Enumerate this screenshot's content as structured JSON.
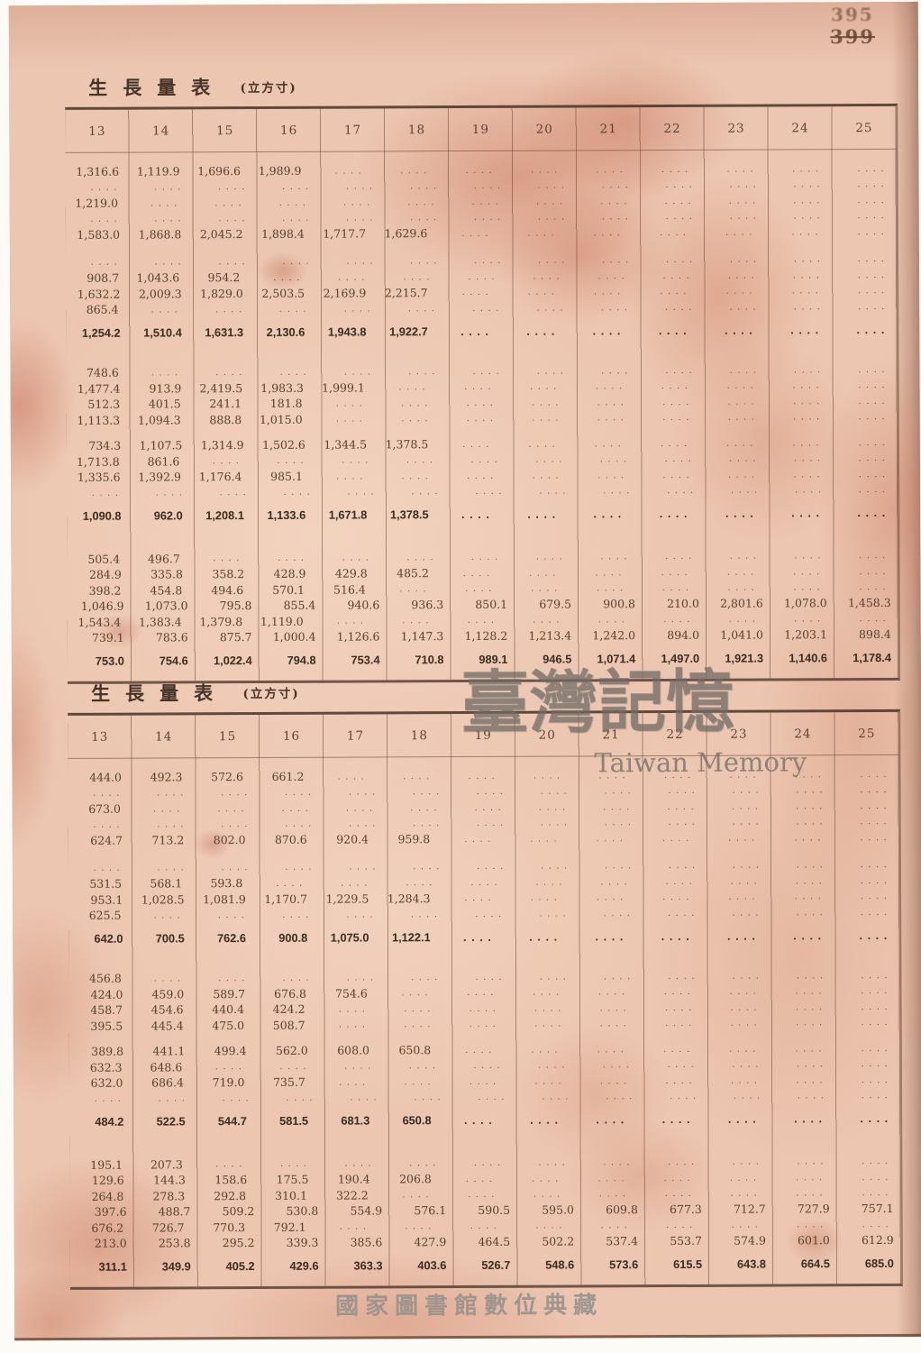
{
  "page": {
    "stamp_top": "395",
    "stamp_bottom_crossed": "399",
    "watermark_cjk": "臺灣記憶",
    "watermark_en": "Taiwan Memory",
    "footer_watermark": "國家圖書館數位典藏"
  },
  "tables": [
    {
      "title": "生長量表",
      "unit": "(立方寸)",
      "columns": [
        "13",
        "14",
        "15",
        "16",
        "17",
        "18",
        "19",
        "20",
        "21",
        "22",
        "23",
        "24",
        "25"
      ],
      "groups": [
        {
          "bold": false,
          "rows": [
            [
              "1,316.6",
              "1,119.9",
              "1,696.6",
              "1,989.9",
              "....",
              "....",
              "....",
              "....",
              "....",
              "....",
              "....",
              "....",
              "...."
            ],
            [
              "....",
              "....",
              "....",
              "....",
              "....",
              "....",
              "....",
              "....",
              "....",
              "....",
              "....",
              "....",
              "...."
            ],
            [
              "1,219.0",
              "....",
              "....",
              "....",
              "....",
              "....",
              "....",
              "....",
              "....",
              "....",
              "....",
              "....",
              "...."
            ],
            [
              "....",
              "....",
              "....",
              "....",
              "....",
              "....",
              "....",
              "....",
              "....",
              "....",
              "....",
              "....",
              "...."
            ],
            [
              "1,583.0",
              "1,868.8",
              "2,045.2",
              "1,898.4",
              "1,717.7",
              "1,629.6",
              "....",
              "....",
              "....",
              "....",
              "....",
              "....",
              "...."
            ]
          ]
        },
        {
          "bold": false,
          "rows": [
            [
              "....",
              "....",
              "....",
              "....",
              "....",
              "....",
              "....",
              "....",
              "....",
              "....",
              "....",
              "....",
              "...."
            ],
            [
              "908.7",
              "1,043.6",
              "954.2",
              "....",
              "....",
              "....",
              "....",
              "....",
              "....",
              "....",
              "....",
              "....",
              "...."
            ],
            [
              "1,632.2",
              "2,009.3",
              "1,829.0",
              "2,503.5",
              "2,169.9",
              "2,215.7",
              "....",
              "....",
              "....",
              "....",
              "....",
              "....",
              "...."
            ],
            [
              "865.4",
              "....",
              "....",
              "....",
              "....",
              "....",
              "....",
              "....",
              "....",
              "....",
              "....",
              "....",
              "...."
            ]
          ]
        },
        {
          "bold": true,
          "rows": [
            [
              "1,254.2",
              "1,510.4",
              "1,631.3",
              "2,130.6",
              "1,943.8",
              "1,922.7",
              "....",
              "....",
              "....",
              "....",
              "....",
              "....",
              "...."
            ]
          ]
        },
        {
          "bold": false,
          "rows": [
            [
              "748.6",
              "....",
              "....",
              "....",
              "....",
              "....",
              "....",
              "....",
              "....",
              "....",
              "....",
              "....",
              "...."
            ],
            [
              "1,477.4",
              "913.9",
              "2,419.5",
              "1,983.3",
              "1,999.1",
              "....",
              "....",
              "....",
              "....",
              "....",
              "....",
              "....",
              "...."
            ],
            [
              "512.3",
              "401.5",
              "241.1",
              "181.8",
              "....",
              "....",
              "....",
              "....",
              "....",
              "....",
              "....",
              "....",
              "...."
            ],
            [
              "1,113.3",
              "1,094.3",
              "888.8",
              "1,015.0",
              "....",
              "....",
              "....",
              "....",
              "....",
              "....",
              "....",
              "....",
              "...."
            ]
          ]
        },
        {
          "bold": false,
          "rows": [
            [
              "734.3",
              "1,107.5",
              "1,314.9",
              "1,502.6",
              "1,344.5",
              "1,378.5",
              "....",
              "....",
              "....",
              "....",
              "....",
              "....",
              "...."
            ],
            [
              "1,713.8",
              "861.6",
              "....",
              "....",
              "....",
              "....",
              "....",
              "....",
              "....",
              "....",
              "....",
              "....",
              "...."
            ],
            [
              "1,335.6",
              "1,392.9",
              "1,176.4",
              "985.1",
              "....",
              "....",
              "....",
              "....",
              "....",
              "....",
              "....",
              "....",
              "...."
            ],
            [
              "....",
              "....",
              "....",
              "....",
              "....",
              "....",
              "....",
              "....",
              "....",
              "....",
              "....",
              "....",
              "...."
            ]
          ]
        },
        {
          "bold": true,
          "rows": [
            [
              "1,090.8",
              "962.0",
              "1,208.1",
              "1,133.6",
              "1,671.8",
              "1,378.5",
              "....",
              "....",
              "....",
              "....",
              "....",
              "....",
              "...."
            ]
          ]
        },
        {
          "bold": false,
          "rows": [
            [
              "505.4",
              "496.7",
              "....",
              "....",
              "....",
              "....",
              "....",
              "....",
              "....",
              "....",
              "....",
              "....",
              "...."
            ],
            [
              "284.9",
              "335.8",
              "358.2",
              "428.9",
              "429.8",
              "485.2",
              "....",
              "....",
              "....",
              "....",
              "....",
              "....",
              "...."
            ],
            [
              "398.2",
              "454.8",
              "494.6",
              "570.1",
              "516.4",
              "....",
              "....",
              "....",
              "....",
              "....",
              "....",
              "....",
              "...."
            ],
            [
              "1,046.9",
              "1,073.0",
              "795.8",
              "855.4",
              "940.6",
              "936.3",
              "850.1",
              "679.5",
              "900.8",
              "210.0",
              "2,801.6",
              "1,078.0",
              "1,458.3"
            ],
            [
              "1,543.4",
              "1,383.4",
              "1,379.8",
              "1,119.0",
              "....",
              "....",
              "....",
              "....",
              "....",
              "....",
              "....",
              "....",
              "...."
            ],
            [
              "739.1",
              "783.6",
              "875.7",
              "1,000.4",
              "1,126.6",
              "1,147.3",
              "1,128.2",
              "1,213.4",
              "1,242.0",
              "894.0",
              "1,041.0",
              "1,203.1",
              "898.4"
            ]
          ]
        },
        {
          "bold": true,
          "rows": [
            [
              "753.0",
              "754.6",
              "1,022.4",
              "794.8",
              "753.4",
              "710.8",
              "989.1",
              "946.5",
              "1,071.4",
              "1,497.0",
              "1,921.3",
              "1,140.6",
              "1,178.4"
            ]
          ]
        }
      ]
    },
    {
      "title": "生長量表",
      "unit": "(立方寸)",
      "columns": [
        "13",
        "14",
        "15",
        "16",
        "17",
        "18",
        "19",
        "20",
        "21",
        "22",
        "23",
        "24",
        "25"
      ],
      "groups": [
        {
          "bold": false,
          "rows": [
            [
              "444.0",
              "492.3",
              "572.6",
              "661.2",
              "....",
              "....",
              "....",
              "....",
              "....",
              "....",
              "....",
              "....",
              "...."
            ],
            [
              "....",
              "....",
              "....",
              "....",
              "....",
              "....",
              "....",
              "....",
              "....",
              "....",
              "....",
              "....",
              "...."
            ],
            [
              "673.0",
              "....",
              "....",
              "....",
              "....",
              "....",
              "....",
              "....",
              "....",
              "....",
              "....",
              "....",
              "...."
            ],
            [
              "....",
              "....",
              "....",
              "....",
              "....",
              "....",
              "....",
              "....",
              "....",
              "....",
              "....",
              "....",
              "...."
            ],
            [
              "624.7",
              "713.2",
              "802.0",
              "870.6",
              "920.4",
              "959.8",
              "....",
              "....",
              "....",
              "....",
              "....",
              "....",
              "...."
            ]
          ]
        },
        {
          "bold": false,
          "rows": [
            [
              "....",
              "....",
              "....",
              "....",
              "....",
              "....",
              "....",
              "....",
              "....",
              "....",
              "....",
              "....",
              "...."
            ],
            [
              "531.5",
              "568.1",
              "593.8",
              "....",
              "....",
              "....",
              "....",
              "....",
              "....",
              "....",
              "....",
              "....",
              "...."
            ],
            [
              "953.1",
              "1,028.5",
              "1,081.9",
              "1,170.7",
              "1,229.5",
              "1,284.3",
              "....",
              "....",
              "....",
              "....",
              "....",
              "....",
              "...."
            ],
            [
              "625.5",
              "....",
              "....",
              "....",
              "....",
              "....",
              "....",
              "....",
              "....",
              "....",
              "....",
              "....",
              "...."
            ]
          ]
        },
        {
          "bold": true,
          "rows": [
            [
              "642.0",
              "700.5",
              "762.6",
              "900.8",
              "1,075.0",
              "1,122.1",
              "....",
              "....",
              "....",
              "....",
              "....",
              "....",
              "...."
            ]
          ]
        },
        {
          "bold": false,
          "rows": [
            [
              "456.8",
              "....",
              "....",
              "....",
              "....",
              "....",
              "....",
              "....",
              "....",
              "....",
              "....",
              "....",
              "...."
            ],
            [
              "424.0",
              "459.0",
              "589.7",
              "676.8",
              "754.6",
              "....",
              "....",
              "....",
              "....",
              "....",
              "....",
              "....",
              "...."
            ],
            [
              "458.7",
              "454.6",
              "440.4",
              "424.2",
              "....",
              "....",
              "....",
              "....",
              "....",
              "....",
              "....",
              "....",
              "...."
            ],
            [
              "395.5",
              "445.4",
              "475.0",
              "508.7",
              "....",
              "....",
              "....",
              "....",
              "....",
              "....",
              "....",
              "....",
              "...."
            ]
          ]
        },
        {
          "bold": false,
          "rows": [
            [
              "389.8",
              "441.1",
              "499.4",
              "562.0",
              "608.0",
              "650.8",
              "....",
              "....",
              "....",
              "....",
              "....",
              "....",
              "...."
            ],
            [
              "632.3",
              "648.6",
              "....",
              "....",
              "....",
              "....",
              "....",
              "....",
              "....",
              "....",
              "....",
              "....",
              "...."
            ],
            [
              "632.0",
              "686.4",
              "719.0",
              "735.7",
              "....",
              "....",
              "....",
              "....",
              "....",
              "....",
              "....",
              "....",
              "...."
            ],
            [
              "....",
              "....",
              "....",
              "....",
              "....",
              "....",
              "....",
              "....",
              "....",
              "....",
              "....",
              "....",
              "...."
            ]
          ]
        },
        {
          "bold": true,
          "rows": [
            [
              "484.2",
              "522.5",
              "544.7",
              "581.5",
              "681.3",
              "650.8",
              "....",
              "....",
              "....",
              "....",
              "....",
              "....",
              "...."
            ]
          ]
        },
        {
          "bold": false,
          "rows": [
            [
              "195.1",
              "207.3",
              "....",
              "....",
              "....",
              "....",
              "....",
              "....",
              "....",
              "....",
              "....",
              "....",
              "...."
            ],
            [
              "129.6",
              "144.3",
              "158.6",
              "175.5",
              "190.4",
              "206.8",
              "....",
              "....",
              "....",
              "....",
              "....",
              "....",
              "...."
            ],
            [
              "264.8",
              "278.3",
              "292.8",
              "310.1",
              "322.2",
              "....",
              "....",
              "....",
              "....",
              "....",
              "....",
              "....",
              "...."
            ],
            [
              "397.6",
              "488.7",
              "509.2",
              "530.8",
              "554.9",
              "576.1",
              "590.5",
              "595.0",
              "609.8",
              "677.3",
              "712.7",
              "727.9",
              "757.1"
            ],
            [
              "676.2",
              "726.7",
              "770.3",
              "792.1",
              "....",
              "....",
              "....",
              "....",
              "....",
              "....",
              "....",
              "....",
              "...."
            ],
            [
              "213.0",
              "253.8",
              "295.2",
              "339.3",
              "385.6",
              "427.9",
              "464.5",
              "502.2",
              "537.4",
              "553.7",
              "574.9",
              "601.0",
              "612.9"
            ]
          ]
        },
        {
          "bold": true,
          "rows": [
            [
              "311.1",
              "349.9",
              "405.2",
              "429.6",
              "363.3",
              "403.6",
              "526.7",
              "548.6",
              "573.6",
              "615.5",
              "643.8",
              "664.5",
              "685.0"
            ]
          ]
        }
      ]
    }
  ]
}
